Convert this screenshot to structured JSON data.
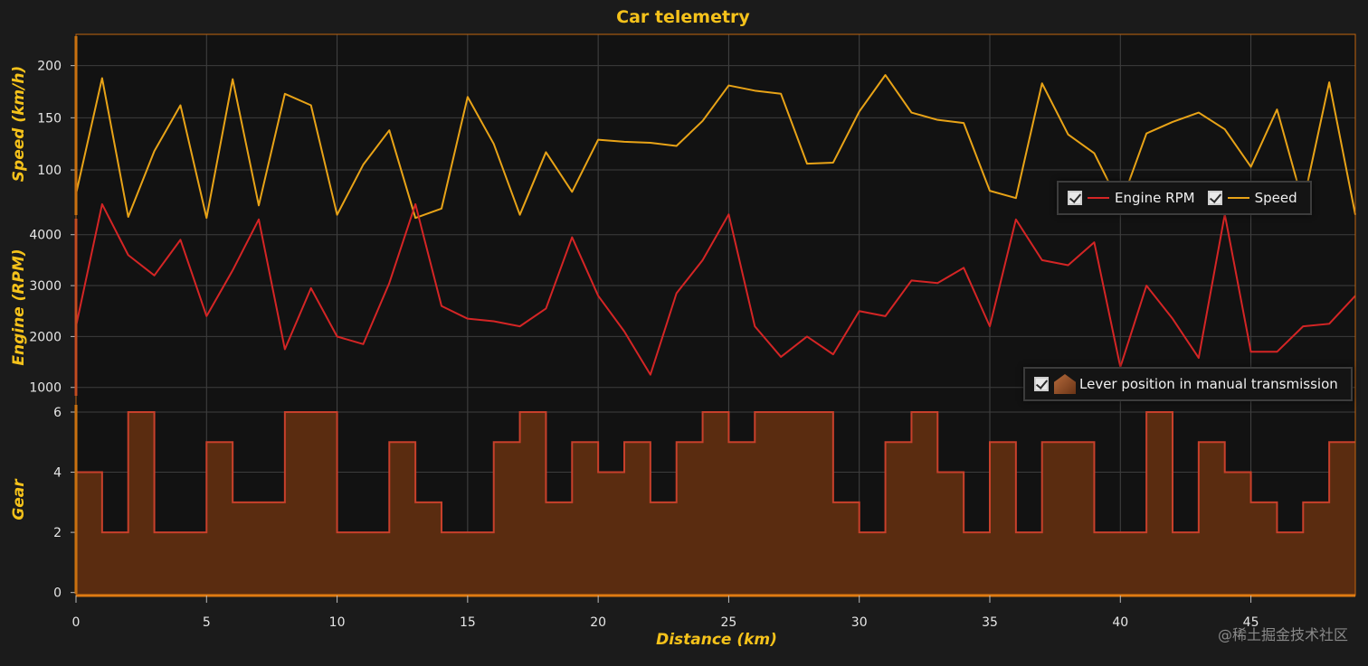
{
  "chart_data": {
    "type": "line",
    "title": "Car telemetry",
    "xlabel": "Distance (km)",
    "xlim": [
      0,
      49
    ],
    "x_ticks": [
      "0",
      "5",
      "10",
      "15",
      "20",
      "25",
      "30",
      "35",
      "40",
      "45"
    ],
    "x": [
      0,
      1,
      2,
      3,
      4,
      5,
      6,
      7,
      8,
      9,
      10,
      11,
      12,
      13,
      14,
      15,
      16,
      17,
      18,
      19,
      20,
      21,
      22,
      23,
      24,
      25,
      26,
      27,
      28,
      29,
      30,
      31,
      32,
      33,
      34,
      35,
      36,
      37,
      38,
      39,
      40,
      41,
      42,
      43,
      44,
      45,
      46,
      47,
      48,
      49
    ],
    "grid": true,
    "panels": [
      {
        "name": "speed",
        "ylabel": "Speed (km/h)",
        "ylim": [
          55,
          230
        ],
        "y_ticks": [
          "100",
          "150",
          "200"
        ],
        "series": [
          {
            "name": "Speed",
            "color": "#e8a317",
            "values": [
              77,
              188,
              55,
              118,
              162,
              54,
              187,
              66,
              173,
              162,
              57,
              105,
              138,
              54,
              63,
              170,
              125,
              57,
              117,
              79,
              129,
              127,
              126,
              123,
              147,
              181,
              176,
              173,
              106,
              107,
              156,
              191,
              155,
              148,
              145,
              80,
              73,
              183,
              134,
              116,
              66,
              135,
              146,
              155,
              139,
              103,
              158,
              68,
              184,
              57
            ]
          }
        ]
      },
      {
        "name": "engine",
        "ylabel": "Engine (RPM)",
        "ylim": [
          800,
          4350
        ],
        "y_ticks": [
          "1000",
          "2000",
          "3000",
          "4000"
        ],
        "series": [
          {
            "name": "Engine RPM",
            "color": "#d42525",
            "values": [
              2200,
              4600,
              3600,
              3200,
              3900,
              2400,
              3300,
              4300,
              1750,
              2950,
              2000,
              1850,
              3050,
              4600,
              2600,
              2350,
              2300,
              2200,
              2550,
              3950,
              2800,
              2100,
              1250,
              2850,
              3500,
              4400,
              2200,
              1600,
              2000,
              1650,
              2500,
              2400,
              3100,
              3050,
              3350,
              2200,
              4300,
              3500,
              3400,
              3850,
              1400,
              3000,
              2350,
              1580,
              4400,
              1700,
              1700,
              2200,
              2250,
              2800
            ]
          }
        ]
      },
      {
        "name": "gear",
        "ylabel": "Gear",
        "ylim": [
          -0.1,
          6.3
        ],
        "y_ticks": [
          "0",
          "2",
          "4",
          "6"
        ],
        "series": [
          {
            "name": "Lever position in manual transmission",
            "type": "step-area",
            "color": "#c8402b",
            "fill": "#5a2c10",
            "values": [
              4,
              2,
              6,
              2,
              2,
              5,
              3,
              3,
              6,
              6,
              2,
              2,
              5,
              3,
              2,
              2,
              5,
              6,
              3,
              5,
              4,
              5,
              3,
              5,
              6,
              5,
              6,
              6,
              6,
              3,
              2,
              5,
              6,
              4,
              2,
              5,
              2,
              5,
              5,
              2,
              2,
              6,
              2,
              5,
              4,
              3,
              2,
              3,
              5,
              5
            ]
          }
        ]
      }
    ]
  },
  "legend_top": {
    "items": [
      "Engine RPM",
      "Speed"
    ]
  },
  "legend_bottom": {
    "items": [
      "Lever position in manual transmission"
    ]
  },
  "watermark": "@稀土掘金技术社区"
}
